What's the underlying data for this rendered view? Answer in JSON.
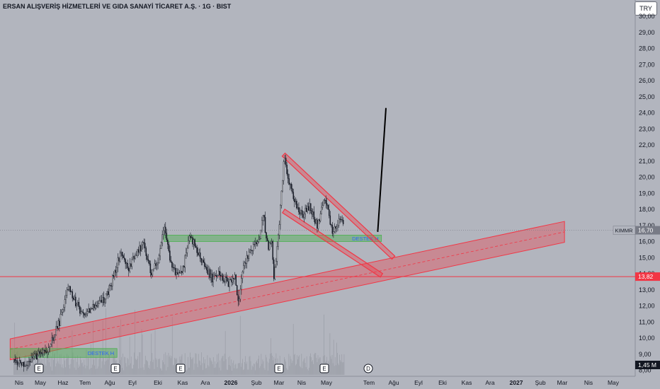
{
  "header": {
    "title": "ERSAN ALIŞVERİŞ HİZMETLERİ VE GIDA SANAYİ TİCARET A.Ş. · 1G · BIST",
    "currency": "TRY"
  },
  "colors": {
    "background": "#b2b5be",
    "candle": "#131722",
    "volume": "#9a9da6",
    "channel_red": "#f23645",
    "support_green": "#4caf50",
    "trend_black": "#000000"
  },
  "chart_data": {
    "type": "candlestick",
    "symbol": "ERSAN",
    "timeframe": "1G",
    "exchange": "BIST",
    "y_axis": {
      "scale": "linear",
      "range": [
        8.0,
        30.5
      ],
      "ticks": [
        "30,00",
        "29,00",
        "28,00",
        "27,00",
        "26,00",
        "25,00",
        "24,00",
        "23,00",
        "22,00",
        "21,00",
        "20,00",
        "19,00",
        "18,00",
        "17,00",
        "16,00",
        "15,00",
        "14,00",
        "13,00",
        "12,00",
        "11,00",
        "10,00",
        "9,00",
        "8,00"
      ]
    },
    "x_axis": {
      "ticks": [
        "Nis",
        "May",
        "Haz",
        "Tem",
        "Ağu",
        "Eyl",
        "Eki",
        "Kas",
        "Ara",
        "2026",
        "Şub",
        "Mar",
        "Nis",
        "May",
        "Tem",
        "Ağu",
        "Eyl",
        "Eki",
        "Kas",
        "Ara",
        "2027",
        "Şub",
        "Mar",
        "Nis",
        "May"
      ]
    },
    "price_markers": [
      {
        "label": "KIMMR",
        "value": "16,70"
      },
      {
        "label": "",
        "value": "13,82"
      },
      {
        "label": "",
        "value": "1,45 M"
      }
    ],
    "close_path": [
      [
        "2025-03-25",
        8.6
      ],
      [
        "2025-04-10",
        8.4
      ],
      [
        "2025-04-25",
        8.9
      ],
      [
        "2025-05-10",
        9.4
      ],
      [
        "2025-05-25",
        11.0
      ],
      [
        "2025-06-05",
        13.2
      ],
      [
        "2025-06-15",
        12.3
      ],
      [
        "2025-06-25",
        11.4
      ],
      [
        "2025-07-10",
        12.0
      ],
      [
        "2025-07-25",
        12.4
      ],
      [
        "2025-08-05",
        13.8
      ],
      [
        "2025-08-15",
        15.3
      ],
      [
        "2025-08-25",
        14.2
      ],
      [
        "2025-09-05",
        15.3
      ],
      [
        "2025-09-15",
        15.8
      ],
      [
        "2025-09-25",
        14.0
      ],
      [
        "2025-10-05",
        15.0
      ],
      [
        "2025-10-12",
        16.8
      ],
      [
        "2025-10-20",
        15.0
      ],
      [
        "2025-10-28",
        13.9
      ],
      [
        "2025-11-05",
        14.0
      ],
      [
        "2025-11-15",
        16.4
      ],
      [
        "2025-11-25",
        15.5
      ],
      [
        "2025-12-05",
        14.5
      ],
      [
        "2025-12-15",
        13.7
      ],
      [
        "2025-12-25",
        14.1
      ],
      [
        "2026-01-05",
        13.4
      ],
      [
        "2026-01-15",
        13.7
      ],
      [
        "2026-01-20",
        12.2
      ],
      [
        "2026-01-25",
        14.3
      ],
      [
        "2026-02-05",
        15.6
      ],
      [
        "2026-02-15",
        15.9
      ],
      [
        "2026-02-22",
        17.6
      ],
      [
        "2026-02-28",
        15.6
      ],
      [
        "2026-03-05",
        16.3
      ],
      [
        "2026-03-08",
        13.6
      ],
      [
        "2026-03-15",
        17.0
      ],
      [
        "2026-03-22",
        21.4
      ],
      [
        "2026-03-28",
        19.6
      ],
      [
        "2026-04-05",
        18.4
      ],
      [
        "2026-04-15",
        17.6
      ],
      [
        "2026-04-25",
        18.2
      ],
      [
        "2026-05-05",
        17.0
      ],
      [
        "2026-05-15",
        18.8
      ],
      [
        "2026-05-25",
        16.6
      ],
      [
        "2026-06-05",
        17.3
      ],
      [
        "2026-06-10",
        16.9
      ]
    ],
    "drawings": {
      "support_zones": [
        {
          "label": "DESTEK H",
          "top": 9.35,
          "bottom": 8.8,
          "start": "2025-03-20",
          "end": "2025-08-10"
        },
        {
          "label": "DESTEK H",
          "top": 16.4,
          "bottom": 16.0,
          "start": "2025-10-12",
          "end": "2026-07-30"
        }
      ],
      "horizontal_lines": [
        {
          "value": 13.82
        }
      ],
      "rising_channel": {
        "start": [
          "2025-03-20",
          9.3
        ],
        "end": [
          "2027-04-01",
          16.6
        ],
        "width": 0.65
      },
      "falling_channel": [
        {
          "start": [
            "2026-03-21",
            21.4
          ],
          "end": [
            "2026-08-15",
            15.0
          ]
        },
        {
          "start": [
            "2026-03-21",
            17.9
          ],
          "end": [
            "2026-07-30",
            13.9
          ]
        }
      ],
      "trend_line": {
        "start": [
          "2026-07-25",
          16.6
        ],
        "end": [
          "2026-08-05",
          24.3
        ]
      }
    },
    "annotations": [
      "E",
      "E",
      "E",
      "E",
      "E",
      "D"
    ]
  }
}
